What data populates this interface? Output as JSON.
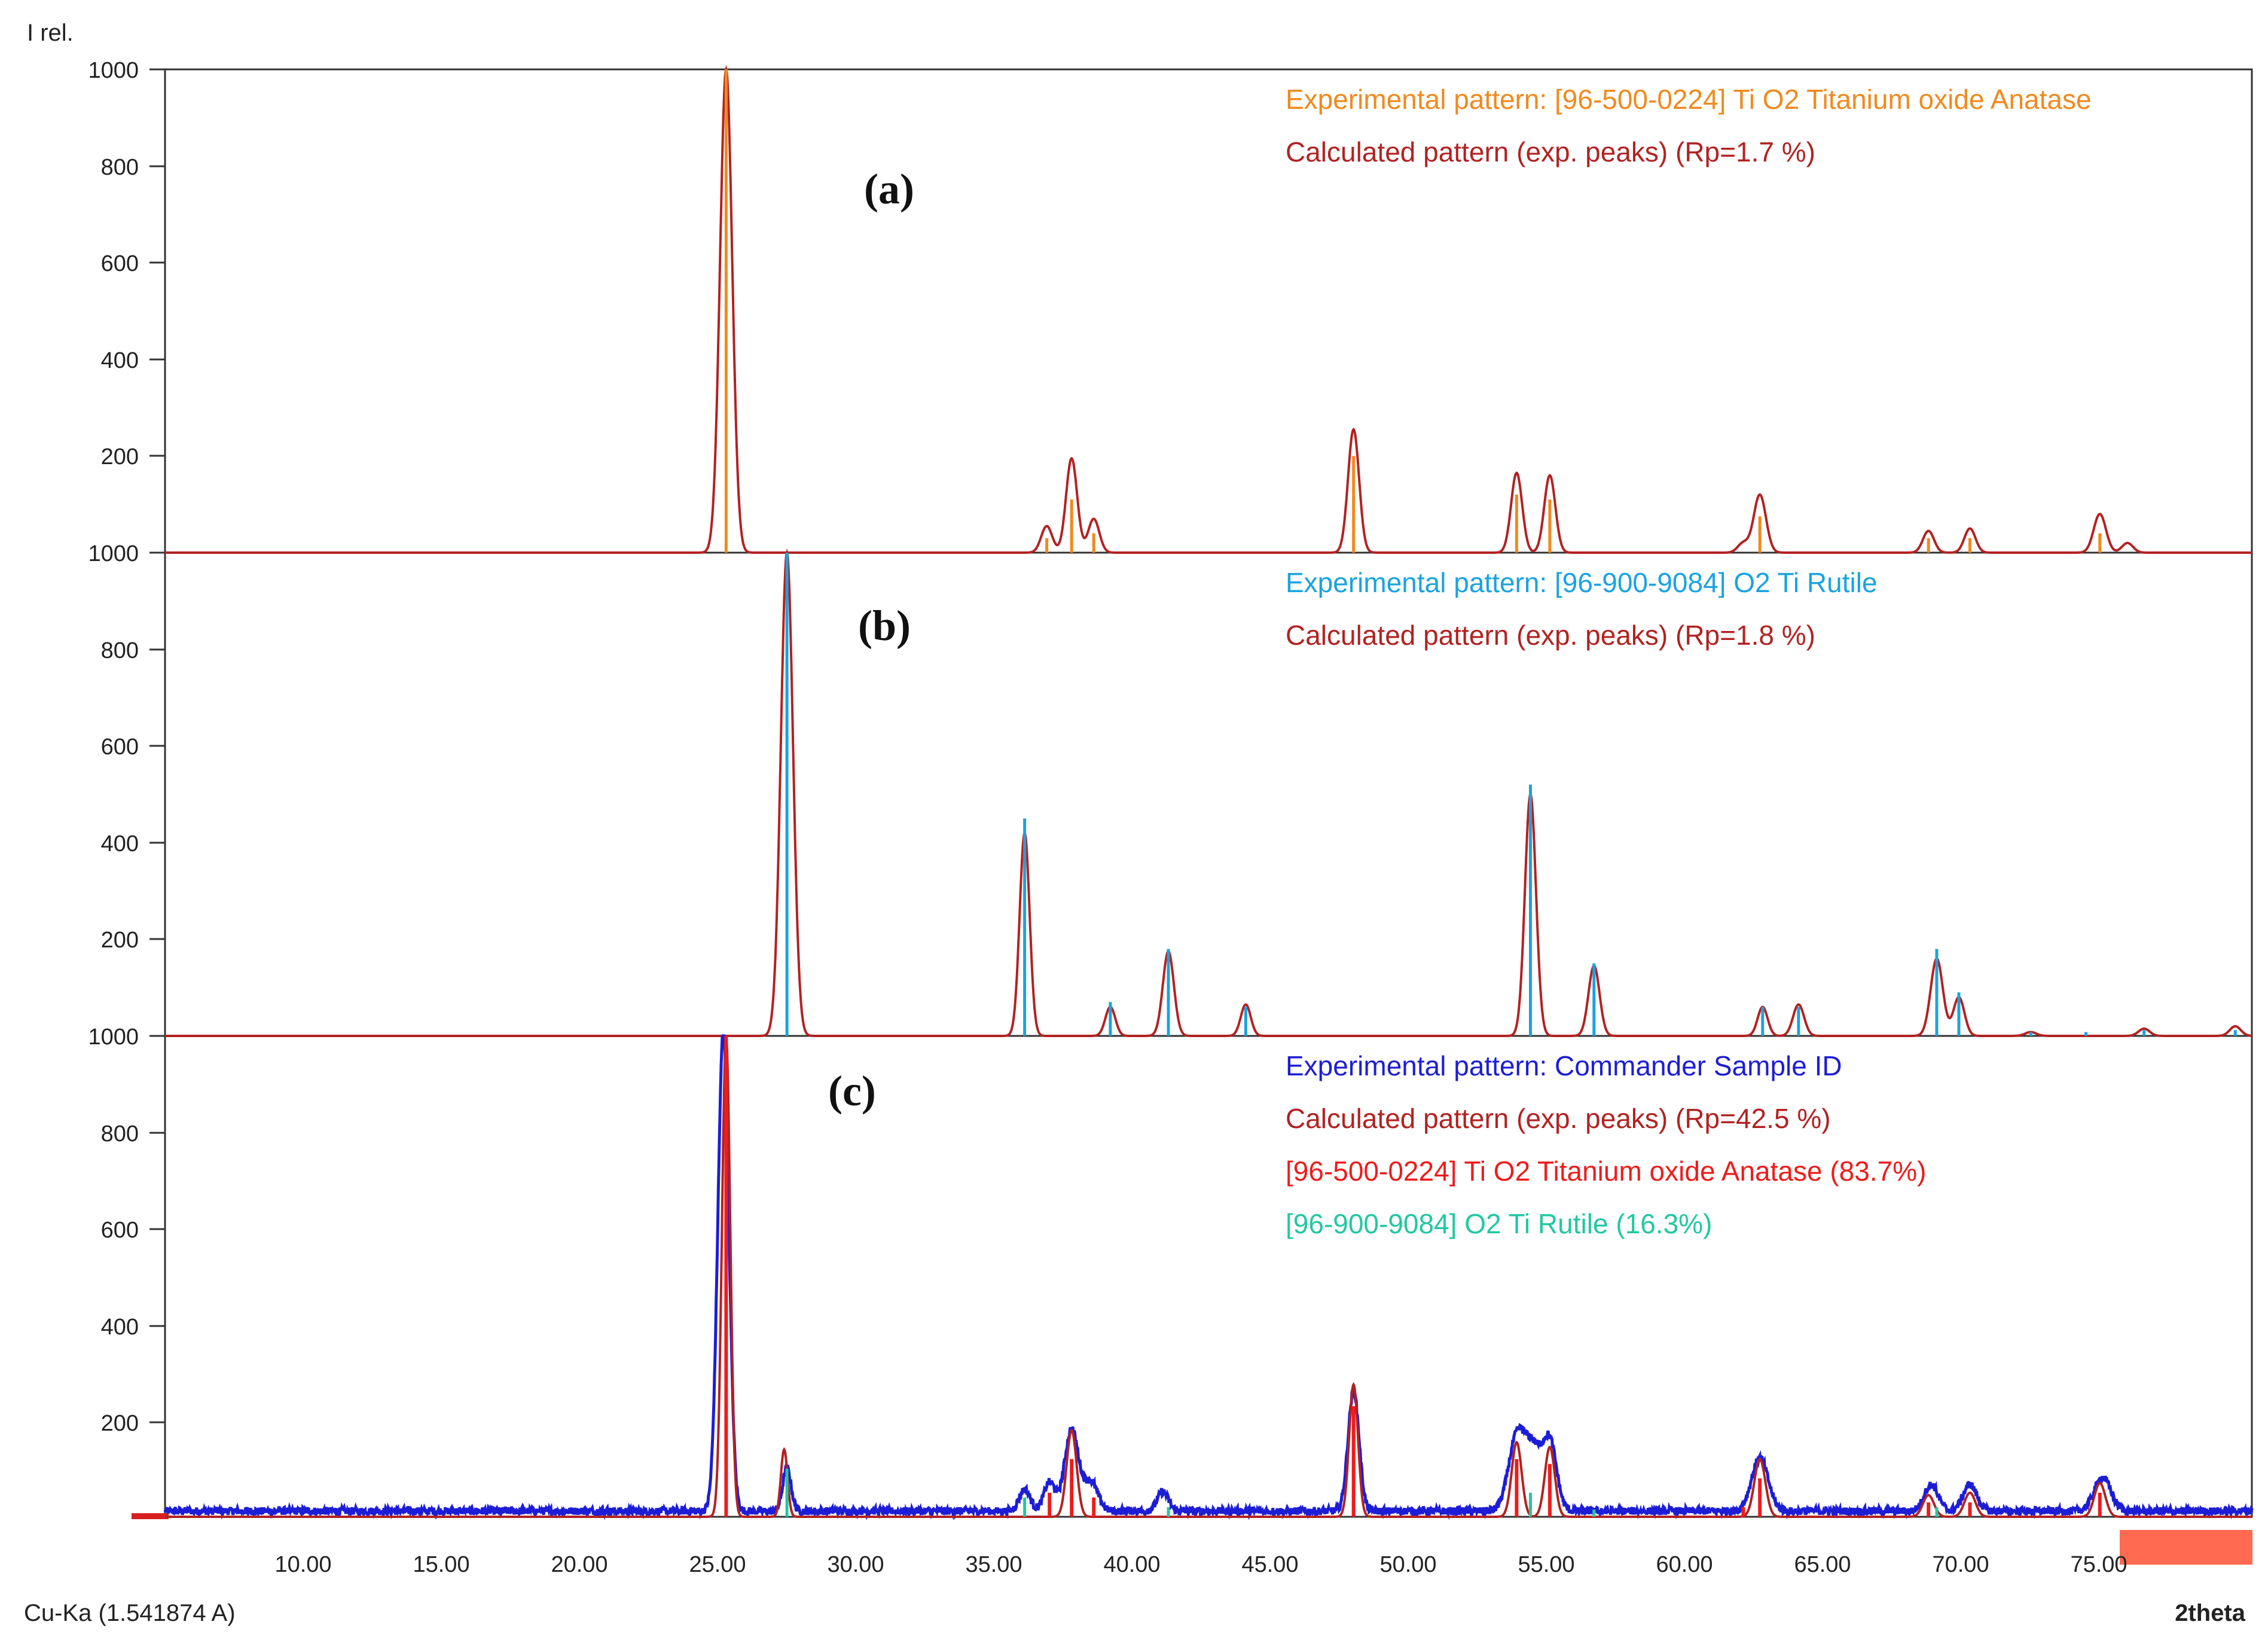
{
  "figure": {
    "y_axis_label": "I rel.",
    "x_axis_label": "2theta",
    "radiation_label": "Cu-Ka (1.541874 A)",
    "x_ticks": [
      "10.00",
      "15.00",
      "20.00",
      "25.00",
      "30.00",
      "35.00",
      "40.00",
      "45.00",
      "50.00",
      "55.00",
      "60.00",
      "65.00",
      "70.00",
      "75.00"
    ],
    "y_ticks": [
      "1000",
      "800",
      "600",
      "400",
      "200"
    ]
  },
  "chart_data": [
    {
      "type": "line",
      "panel_label": "(a)",
      "xlim": [
        5,
        80.5
      ],
      "ylim": [
        0,
        1000
      ],
      "legend": [
        {
          "text": "Experimental pattern: [96-500-0224] Ti O2 Titanium oxide Anatase",
          "color": "#f08a1e"
        },
        {
          "text": "Calculated pattern (exp. peaks) (Rp=1.7 %)",
          "color": "#b22222"
        }
      ],
      "calc_series": {
        "name": "Calculated pattern (exp. peaks)",
        "color": "#b22222",
        "baseline": 0,
        "peaks": [
          [
            25.3,
            1000,
            0.22
          ],
          [
            36.9,
            55,
            0.2
          ],
          [
            37.8,
            195,
            0.2
          ],
          [
            38.6,
            70,
            0.2
          ],
          [
            48.0,
            255,
            0.2
          ],
          [
            53.9,
            165,
            0.2
          ],
          [
            55.1,
            160,
            0.2
          ],
          [
            62.1,
            20,
            0.2
          ],
          [
            62.7,
            120,
            0.22
          ],
          [
            68.8,
            45,
            0.2
          ],
          [
            70.3,
            50,
            0.2
          ],
          [
            75.0,
            80,
            0.22
          ],
          [
            76.0,
            20,
            0.2
          ]
        ]
      },
      "ref_series": {
        "name": "Experimental pattern (reference lines)",
        "color": "#f08a1e",
        "lines": [
          [
            25.3,
            1000
          ],
          [
            36.9,
            30
          ],
          [
            37.8,
            110
          ],
          [
            38.6,
            40
          ],
          [
            48.0,
            200
          ],
          [
            53.9,
            120
          ],
          [
            55.1,
            110
          ],
          [
            62.7,
            75
          ],
          [
            68.8,
            30
          ],
          [
            70.3,
            30
          ],
          [
            75.0,
            40
          ]
        ]
      }
    },
    {
      "type": "line",
      "panel_label": "(b)",
      "xlim": [
        5,
        80.5
      ],
      "ylim": [
        0,
        1000
      ],
      "legend": [
        {
          "text": "Experimental pattern: [96-900-9084] O2 Ti  Rutile",
          "color": "#1aa3e0"
        },
        {
          "text": "Calculated pattern (exp. peaks) (Rp=1.8 %)",
          "color": "#b22222"
        }
      ],
      "calc_series": {
        "name": "Calculated pattern (exp. peaks)",
        "color": "#b22222",
        "baseline": 0,
        "peaks": [
          [
            27.5,
            1000,
            0.22
          ],
          [
            36.1,
            420,
            0.18
          ],
          [
            39.2,
            60,
            0.18
          ],
          [
            41.3,
            175,
            0.2
          ],
          [
            44.1,
            65,
            0.18
          ],
          [
            54.4,
            500,
            0.2
          ],
          [
            56.7,
            145,
            0.2
          ],
          [
            62.8,
            60,
            0.18
          ],
          [
            64.1,
            65,
            0.2
          ],
          [
            69.1,
            160,
            0.22
          ],
          [
            69.9,
            80,
            0.2
          ],
          [
            72.5,
            8,
            0.2
          ],
          [
            76.6,
            15,
            0.2
          ],
          [
            79.9,
            20,
            0.2
          ]
        ]
      },
      "ref_series": {
        "name": "Experimental pattern (reference lines)",
        "color": "#1aa3e0",
        "lines": [
          [
            27.5,
            1000
          ],
          [
            36.1,
            450
          ],
          [
            39.2,
            70
          ],
          [
            41.3,
            180
          ],
          [
            44.1,
            60
          ],
          [
            54.4,
            520
          ],
          [
            56.7,
            150
          ],
          [
            62.8,
            60
          ],
          [
            64.1,
            60
          ],
          [
            69.1,
            180
          ],
          [
            69.9,
            90
          ],
          [
            72.5,
            8
          ],
          [
            74.5,
            8
          ],
          [
            76.6,
            12
          ],
          [
            79.9,
            12
          ]
        ]
      }
    },
    {
      "type": "line",
      "panel_label": "(c)",
      "xlim": [
        5,
        80.5
      ],
      "ylim": [
        0,
        1000
      ],
      "legend": [
        {
          "text": "Experimental pattern: Commander Sample ID",
          "color": "#1d1dd6"
        },
        {
          "text": "Calculated pattern (exp. peaks) (Rp=42.5 %)",
          "color": "#b22222"
        },
        {
          "text": "[96-500-0224] Ti O2 Titanium oxide Anatase (83.7%)",
          "color": "#ee1c1c"
        },
        {
          "text": "[96-900-9084] O2 Ti  Rutile (16.3%)",
          "color": "#22c8a0"
        }
      ],
      "exp_series": {
        "name": "Experimental pattern: Commander Sample ID",
        "color": "#1d1dd6",
        "baseline": 12,
        "noise_amplitude": 8,
        "peaks": [
          [
            25.2,
            1000,
            0.2
          ],
          [
            27.5,
            90,
            0.15
          ],
          [
            36.1,
            45,
            0.2
          ],
          [
            37.0,
            60,
            0.2
          ],
          [
            37.8,
            170,
            0.25
          ],
          [
            38.5,
            60,
            0.25
          ],
          [
            41.1,
            40,
            0.2
          ],
          [
            48.0,
            250,
            0.2
          ],
          [
            53.9,
            150,
            0.3
          ],
          [
            54.5,
            120,
            0.3
          ],
          [
            55.1,
            140,
            0.25
          ],
          [
            62.7,
            110,
            0.3
          ],
          [
            68.9,
            55,
            0.25
          ],
          [
            70.3,
            55,
            0.25
          ],
          [
            75.1,
            70,
            0.3
          ]
        ]
      },
      "calc_series": {
        "name": "Calculated pattern (exp. peaks)",
        "color": "#b22222",
        "baseline": 0,
        "peaks": [
          [
            25.3,
            1000,
            0.15
          ],
          [
            27.4,
            140,
            0.12
          ],
          [
            37.8,
            180,
            0.18
          ],
          [
            48.0,
            275,
            0.16
          ],
          [
            53.9,
            155,
            0.18
          ],
          [
            55.1,
            145,
            0.18
          ],
          [
            62.7,
            120,
            0.2
          ],
          [
            68.8,
            45,
            0.2
          ],
          [
            70.3,
            50,
            0.2
          ],
          [
            75.0,
            70,
            0.2
          ]
        ]
      },
      "anatase_lines": {
        "name": "[96-500-0224] Ti O2 Titanium oxide Anatase (83.7%)",
        "color": "#ee1c1c",
        "lines": [
          [
            25.3,
            1000
          ],
          [
            37.0,
            50
          ],
          [
            37.8,
            120
          ],
          [
            38.6,
            40
          ],
          [
            48.0,
            230
          ],
          [
            53.9,
            120
          ],
          [
            55.1,
            110
          ],
          [
            62.1,
            20
          ],
          [
            62.7,
            80
          ],
          [
            68.8,
            30
          ],
          [
            70.3,
            30
          ],
          [
            75.0,
            50
          ]
        ]
      },
      "rutile_lines": {
        "name": "[96-900-9084] O2 Ti  Rutile (16.3%)",
        "color": "#22c8a0",
        "lines": [
          [
            27.5,
            100
          ],
          [
            36.1,
            40
          ],
          [
            41.3,
            20
          ],
          [
            54.4,
            50
          ],
          [
            56.7,
            15
          ],
          [
            69.1,
            20
          ]
        ]
      }
    }
  ]
}
